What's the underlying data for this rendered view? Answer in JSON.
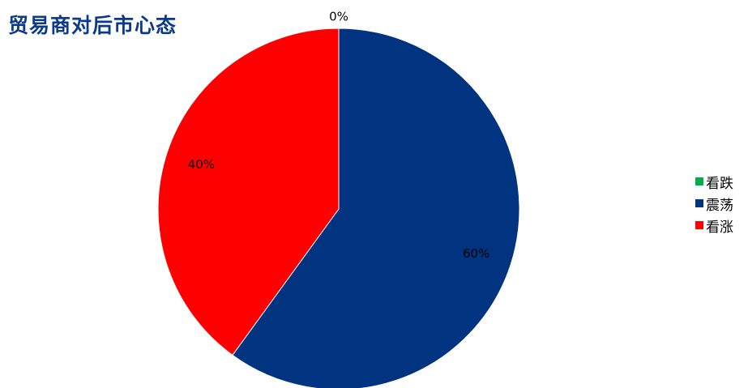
{
  "header": {
    "title": "贸易商对后市心态"
  },
  "chart_data": {
    "type": "pie",
    "title": "贸易商对后市心态",
    "categories": [
      "看跌",
      "震荡",
      "看涨"
    ],
    "values": [
      0,
      60,
      40
    ],
    "data_labels": [
      "0%",
      "60%",
      "40%"
    ],
    "colors": [
      "#00b050",
      "#003380",
      "#ff0000"
    ],
    "legend_position": "right",
    "start_angle": "12 o'clock",
    "direction": "clockwise"
  }
}
